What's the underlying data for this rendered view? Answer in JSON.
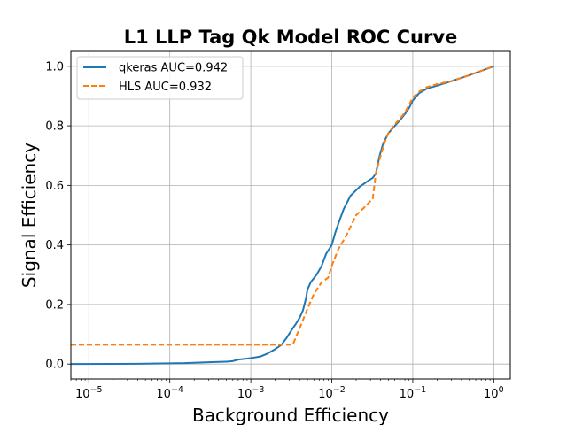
{
  "chart_data": {
    "type": "line",
    "title": "L1 LLP Tag Qk Model ROC Curve",
    "xlabel": "Background Efficiency",
    "ylabel": "Signal Efficiency",
    "xscale": "log",
    "xlim": [
      6e-06,
      1.6
    ],
    "ylim": [
      -0.05,
      1.05
    ],
    "grid": true,
    "legend": "top-left",
    "x_ticks": [
      {
        "value": 1e-05,
        "base": "10",
        "exp": "−5"
      },
      {
        "value": 0.0001,
        "base": "10",
        "exp": "−4"
      },
      {
        "value": 0.001,
        "base": "10",
        "exp": "−3"
      },
      {
        "value": 0.01,
        "base": "10",
        "exp": "−2"
      },
      {
        "value": 0.1,
        "base": "10",
        "exp": "−1"
      },
      {
        "value": 1,
        "base": "10",
        "exp": "0"
      }
    ],
    "y_ticks": [
      {
        "value": 0.0,
        "label": "0.0"
      },
      {
        "value": 0.2,
        "label": "0.2"
      },
      {
        "value": 0.4,
        "label": "0.4"
      },
      {
        "value": 0.6,
        "label": "0.6"
      },
      {
        "value": 0.8,
        "label": "0.8"
      },
      {
        "value": 1.0,
        "label": "1.0"
      }
    ],
    "series": [
      {
        "name": "qkeras AUC=0.942",
        "color": "#1f77b4",
        "style": "solid",
        "x": [
          6e-06,
          4e-05,
          0.00015,
          0.0003,
          0.0005,
          0.0006,
          0.0007,
          0.001,
          0.0013,
          0.0016,
          0.002,
          0.0024,
          0.0028,
          0.0032,
          0.0036,
          0.004,
          0.0044,
          0.0048,
          0.005,
          0.0055,
          0.0065,
          0.0075,
          0.0085,
          0.01,
          0.011,
          0.012,
          0.014,
          0.017,
          0.022,
          0.028,
          0.032,
          0.035,
          0.039,
          0.043,
          0.05,
          0.06,
          0.07,
          0.08,
          0.09,
          0.1,
          0.12,
          0.15,
          0.2,
          0.3,
          0.5,
          1
        ],
        "y": [
          0.0,
          0.001,
          0.003,
          0.006,
          0.008,
          0.01,
          0.015,
          0.02,
          0.025,
          0.035,
          0.05,
          0.065,
          0.09,
          0.115,
          0.135,
          0.155,
          0.18,
          0.22,
          0.25,
          0.275,
          0.3,
          0.33,
          0.37,
          0.4,
          0.44,
          0.47,
          0.52,
          0.565,
          0.595,
          0.615,
          0.625,
          0.64,
          0.7,
          0.74,
          0.775,
          0.8,
          0.82,
          0.84,
          0.86,
          0.885,
          0.91,
          0.925,
          0.935,
          0.95,
          0.97,
          1.0
        ]
      },
      {
        "name": "HLS AUC=0.932",
        "color": "#ff7f0e",
        "style": "dashed",
        "x": [
          6e-06,
          0.0001,
          0.001,
          0.0033,
          0.004,
          0.005,
          0.006,
          0.0075,
          0.009,
          0.01,
          0.012,
          0.015,
          0.02,
          0.025,
          0.032,
          0.035,
          0.04,
          0.045,
          0.05,
          0.06,
          0.07,
          0.08,
          0.09,
          0.1,
          0.12,
          0.15,
          0.2,
          0.3,
          0.5,
          1
        ],
        "y": [
          0.065,
          0.065,
          0.065,
          0.065,
          0.12,
          0.185,
          0.235,
          0.275,
          0.29,
          0.33,
          0.385,
          0.43,
          0.5,
          0.525,
          0.555,
          0.64,
          0.7,
          0.745,
          0.775,
          0.805,
          0.825,
          0.845,
          0.87,
          0.895,
          0.915,
          0.93,
          0.94,
          0.95,
          0.97,
          1.0
        ]
      }
    ]
  }
}
